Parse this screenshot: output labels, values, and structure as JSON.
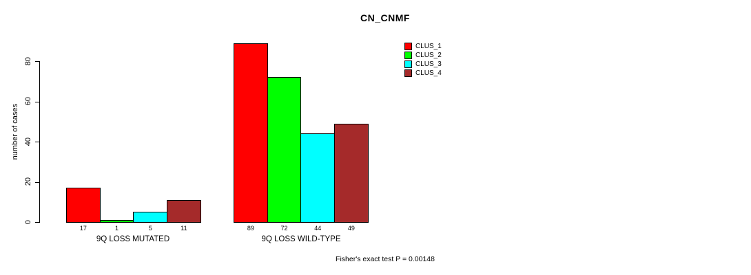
{
  "chart_data": {
    "type": "bar",
    "title": "CN_CNMF",
    "ylabel": "number of cases",
    "xlabel": "",
    "axis_range": [
      0,
      80
    ],
    "yticks": [
      0,
      20,
      40,
      60,
      80
    ],
    "grid": false,
    "legend_position": "top-right-inside",
    "series": [
      {
        "name": "CLUS_1",
        "color": "#FF0000"
      },
      {
        "name": "CLUS_2",
        "color": "#00FF00"
      },
      {
        "name": "CLUS_3",
        "color": "#00FFFF"
      },
      {
        "name": "CLUS_4",
        "color": "#A52A2A"
      }
    ],
    "groups": [
      {
        "label": "9Q LOSS MUTATED",
        "values": [
          17,
          1,
          5,
          11
        ]
      },
      {
        "label": "9Q LOSS WILD-TYPE",
        "values": [
          89,
          72,
          44,
          49
        ]
      }
    ],
    "footnote": "Fisher's exact test P = 0.00148"
  },
  "colors": {
    "background": "#FFFFFF",
    "axis": "#000000",
    "text": "#000000"
  }
}
